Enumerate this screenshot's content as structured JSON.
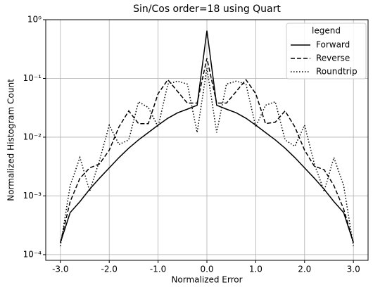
{
  "chart_data": {
    "type": "line",
    "title": "Sin/Cos order=18 using Quart",
    "x_label": "Normalized Error",
    "y_label": "Normalized Histogram Count",
    "x": [
      -3,
      -2.8,
      -2.6,
      -2.4,
      -2.2,
      -2,
      -1.8,
      -1.6,
      -1.4,
      -1.2,
      -1,
      -0.8,
      -0.6,
      -0.4,
      -0.2,
      0,
      0.2,
      0.4,
      0.6,
      0.8,
      1,
      1.2,
      1.4,
      1.6,
      1.8,
      2,
      2.2,
      2.4,
      2.6,
      2.8,
      3
    ],
    "series": [
      {
        "name": "Forward",
        "color": "#000000",
        "dash": "solid",
        "values": [
          0.00016,
          0.00052,
          0.0008,
          0.0013,
          0.002,
          0.003,
          0.0045,
          0.0065,
          0.009,
          0.012,
          0.016,
          0.021,
          0.026,
          0.03,
          0.035,
          0.65,
          0.035,
          0.03,
          0.026,
          0.021,
          0.016,
          0.012,
          0.009,
          0.0065,
          0.0045,
          0.003,
          0.002,
          0.0013,
          0.0008,
          0.00052,
          0.00016
        ]
      },
      {
        "name": "Reverse",
        "color": "#000000",
        "dash": "dashed",
        "values": [
          0.00016,
          0.0008,
          0.002,
          0.003,
          0.0035,
          0.006,
          0.015,
          0.028,
          0.017,
          0.017,
          0.055,
          0.095,
          0.06,
          0.038,
          0.038,
          0.22,
          0.038,
          0.038,
          0.06,
          0.095,
          0.055,
          0.017,
          0.018,
          0.028,
          0.015,
          0.006,
          0.0032,
          0.0028,
          0.0015,
          0.0006,
          0.00016
        ]
      },
      {
        "name": "Roundtrip",
        "color": "#000000",
        "dash": "dotted",
        "values": [
          0.00014,
          0.0015,
          0.0045,
          0.0012,
          0.004,
          0.016,
          0.0075,
          0.009,
          0.04,
          0.032,
          0.015,
          0.08,
          0.09,
          0.08,
          0.012,
          0.15,
          0.012,
          0.08,
          0.09,
          0.08,
          0.015,
          0.035,
          0.04,
          0.009,
          0.007,
          0.016,
          0.0035,
          0.0012,
          0.0045,
          0.0015,
          0.00014
        ]
      }
    ],
    "xlim": [
      -3.3,
      3.3
    ],
    "ylim": [
      8e-05,
      1
    ],
    "y_scale": "log",
    "xticks": [
      {
        "value": -3,
        "label": "-3.0"
      },
      {
        "value": -2,
        "label": "-2.0"
      },
      {
        "value": -1,
        "label": "-1.0"
      },
      {
        "value": 0,
        "label": "0.0"
      },
      {
        "value": 1,
        "label": "1.0"
      },
      {
        "value": 2,
        "label": "2.0"
      },
      {
        "value": 3,
        "label": "3.0"
      }
    ],
    "yticks": [
      {
        "value": 0.0001,
        "label": "10⁻⁴"
      },
      {
        "value": 0.001,
        "label": "10⁻³"
      },
      {
        "value": 0.01,
        "label": "10⁻²"
      },
      {
        "value": 0.1,
        "label": "10⁻¹"
      },
      {
        "value": 1,
        "label": "10⁰"
      }
    ],
    "grid": true,
    "legend_title": "legend",
    "legend_position": "upper-right"
  }
}
